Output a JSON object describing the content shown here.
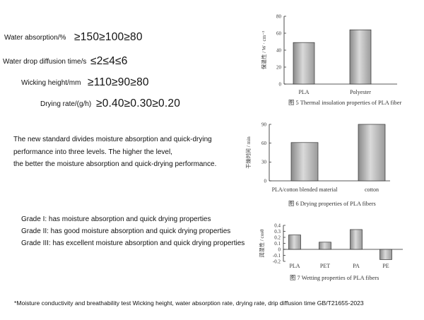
{
  "criteria": [
    {
      "label": "Water absorption/%",
      "values": "≥150≥100≥80"
    },
    {
      "label": "Water drop diffusion time/s",
      "values": " ≤2≤4≤6"
    },
    {
      "label": "Wicking height/mm",
      "values": "≥110≥90≥80"
    },
    {
      "label": "Drying rate/(g/h)",
      "values": "≥0.40≥0.30≥0.20"
    }
  ],
  "standard_text": [
    "The new standard divides moisture absorption and quick-drying",
    "performance into three levels. The higher the level,",
    "the better the moisture absorption and quick-drying performance."
  ],
  "grades": [
    "Grade I: has moisture absorption and quick drying properties",
    "Grade II: has good moisture absorption and quick drying properties",
    "Grade III: has excellent moisture absorption and quick drying properties"
  ],
  "footnote": "*Moisture conductivity and breathability test  Wicking height, water absorption rate, drying rate, drip diffusion time GB/T21655-2023",
  "chart_data": [
    {
      "type": "bar",
      "title": "图 5 Thermal insulation properties of PLA fiber",
      "ylabel": "保温性 / W · cm⁻²",
      "categories": [
        "PLA",
        "Polyester"
      ],
      "values": [
        49,
        64
      ],
      "ylim": [
        0,
        80
      ],
      "yticks": [
        0,
        20,
        40,
        60,
        80
      ],
      "grid": false
    },
    {
      "type": "bar",
      "title": "图 6 Drying properties of PLA fibers",
      "ylabel": "干燥时间 / min",
      "categories": [
        "PLA/cotton blended material",
        "cotton"
      ],
      "values": [
        61,
        90
      ],
      "ylim": [
        0,
        90
      ],
      "yticks": [
        0,
        30,
        60,
        90
      ],
      "grid": false
    },
    {
      "type": "bar",
      "title": "图 7 Wetting properties of PLA fibers",
      "ylabel": "润湿性 / cosθ",
      "categories": [
        "PLA",
        "PET",
        "PA",
        "PE"
      ],
      "values": [
        0.24,
        0.12,
        0.33,
        -0.17
      ],
      "ylim": [
        -0.2,
        0.4
      ],
      "yticks": [
        -0.2,
        -0.1,
        0,
        0.1,
        0.2,
        0.3,
        0.4
      ],
      "grid": false
    }
  ]
}
